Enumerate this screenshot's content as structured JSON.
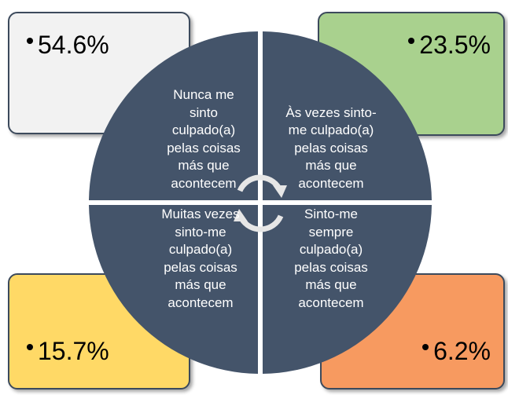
{
  "quadrants": [
    {
      "label": "Nunca me sinto culpado(a) pelas coisas más que acontecem",
      "value": "54.6%"
    },
    {
      "label": "Às vezes sinto-me culpado(a) pelas coisas más que acontecem",
      "value": "23.5%"
    },
    {
      "label": "Muitas vezes sinto-me culpado(a) pelas coisas más que acontecem",
      "value": "15.7%"
    },
    {
      "label": "Sinto-me sempre culpado(a) pelas coisas más que acontecem",
      "value": "6.2%"
    }
  ]
}
